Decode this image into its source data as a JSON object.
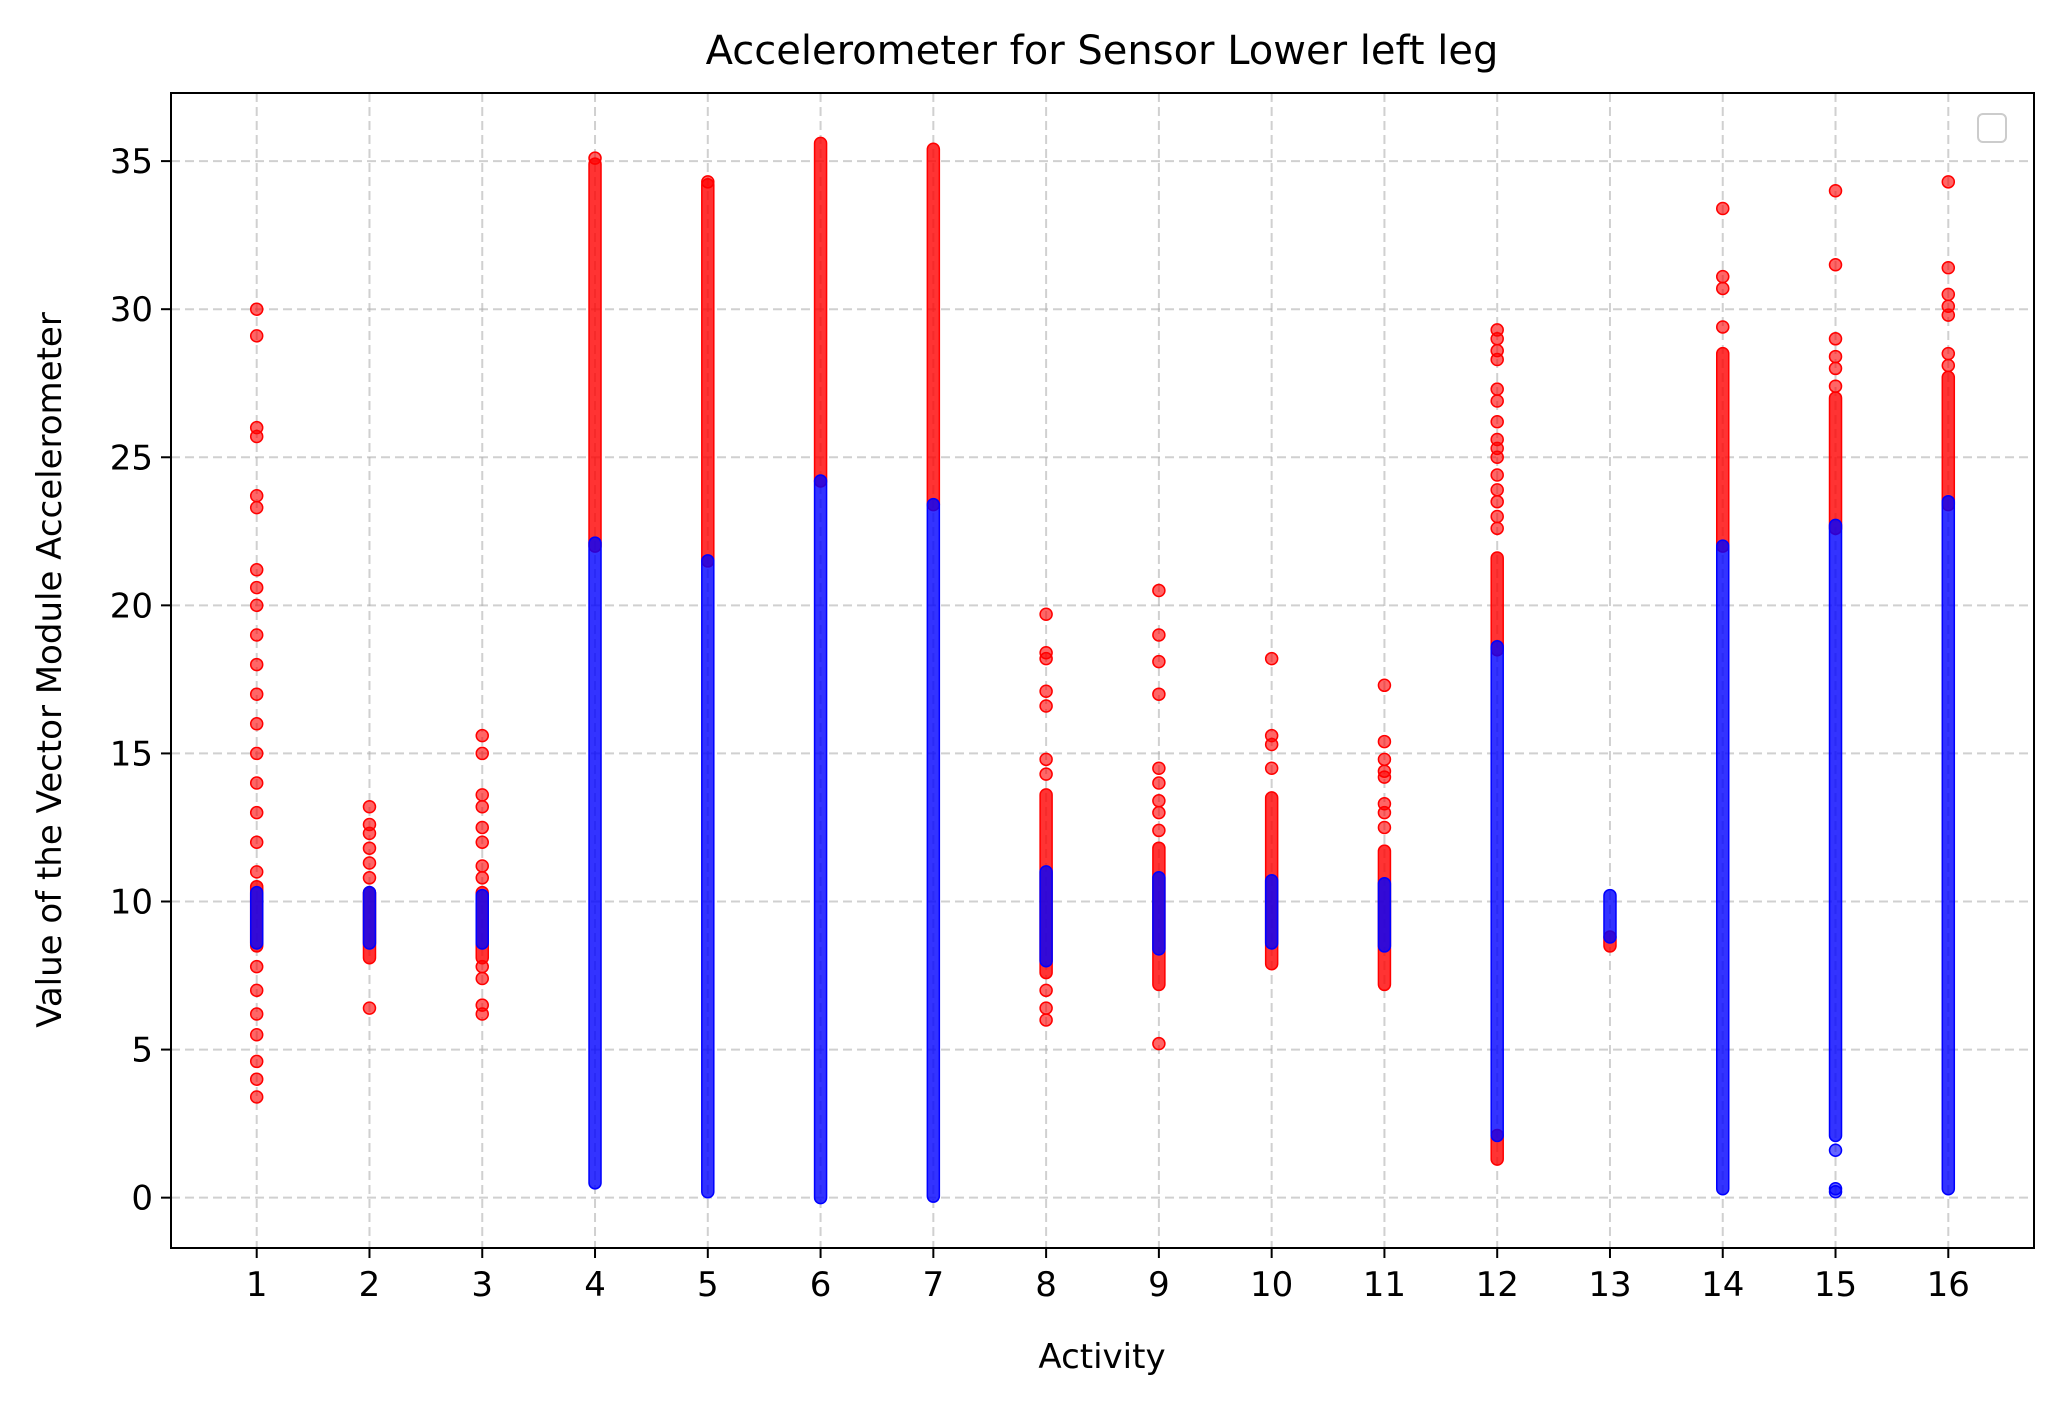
{
  "chart_data": {
    "type": "scatter",
    "title": "Accelerometer for Sensor Lower left leg",
    "xlabel": "Activity",
    "ylabel": "Value of the Vector Module Accelerometer",
    "xlim": [
      0.24,
      16.76
    ],
    "ylim": [
      -1.7,
      37.3
    ],
    "x_ticks": [
      1,
      2,
      3,
      4,
      5,
      6,
      7,
      8,
      9,
      10,
      11,
      12,
      13,
      14,
      15,
      16
    ],
    "y_ticks": [
      0,
      5,
      10,
      15,
      20,
      25,
      30,
      35
    ],
    "grid": true,
    "legend": {
      "placement": "top-right",
      "entries": []
    },
    "colors": {
      "outlier": "#ff0000",
      "inlier": "#0000ff"
    },
    "series": [
      {
        "color": "outlier",
        "ranges": [
          {
            "x": 1,
            "lo": 8.5,
            "hi": 10.5
          },
          {
            "x": 2,
            "lo": 8.1,
            "hi": 10.3
          },
          {
            "x": 3,
            "lo": 8.1,
            "hi": 10.3
          },
          {
            "x": 4,
            "lo": 22.0,
            "hi": 34.9
          },
          {
            "x": 5,
            "lo": 21.5,
            "hi": 34.2
          },
          {
            "x": 6,
            "lo": 24.2,
            "hi": 35.6
          },
          {
            "x": 7,
            "lo": 23.4,
            "hi": 35.4
          },
          {
            "x": 8,
            "lo": 7.6,
            "hi": 13.6
          },
          {
            "x": 9,
            "lo": 7.2,
            "hi": 11.8
          },
          {
            "x": 10,
            "lo": 7.9,
            "hi": 13.5
          },
          {
            "x": 11,
            "lo": 7.2,
            "hi": 11.7
          },
          {
            "x": 12,
            "lo": 18.5,
            "hi": 21.6
          },
          {
            "x": 12,
            "lo": 1.3,
            "hi": 2.1
          },
          {
            "x": 13,
            "lo": 8.5,
            "hi": 8.8
          },
          {
            "x": 14,
            "lo": 22.0,
            "hi": 28.5
          },
          {
            "x": 15,
            "lo": 22.6,
            "hi": 27.0
          },
          {
            "x": 16,
            "lo": 23.4,
            "hi": 27.7
          }
        ],
        "points": [
          {
            "x": 1,
            "y": 3.4
          },
          {
            "x": 1,
            "y": 4.0
          },
          {
            "x": 1,
            "y": 4.6
          },
          {
            "x": 1,
            "y": 5.5
          },
          {
            "x": 1,
            "y": 6.2
          },
          {
            "x": 1,
            "y": 7.0
          },
          {
            "x": 1,
            "y": 7.8
          },
          {
            "x": 1,
            "y": 11.0
          },
          {
            "x": 1,
            "y": 12.0
          },
          {
            "x": 1,
            "y": 13.0
          },
          {
            "x": 1,
            "y": 14.0
          },
          {
            "x": 1,
            "y": 15.0
          },
          {
            "x": 1,
            "y": 16.0
          },
          {
            "x": 1,
            "y": 17.0
          },
          {
            "x": 1,
            "y": 18.0
          },
          {
            "x": 1,
            "y": 19.0
          },
          {
            "x": 1,
            "y": 20.0
          },
          {
            "x": 1,
            "y": 20.6
          },
          {
            "x": 1,
            "y": 21.2
          },
          {
            "x": 1,
            "y": 23.3
          },
          {
            "x": 1,
            "y": 23.7
          },
          {
            "x": 1,
            "y": 25.7
          },
          {
            "x": 1,
            "y": 26.0
          },
          {
            "x": 1,
            "y": 29.1
          },
          {
            "x": 1,
            "y": 30.0
          },
          {
            "x": 2,
            "y": 6.4
          },
          {
            "x": 2,
            "y": 10.8
          },
          {
            "x": 2,
            "y": 11.3
          },
          {
            "x": 2,
            "y": 11.8
          },
          {
            "x": 2,
            "y": 12.3
          },
          {
            "x": 2,
            "y": 12.6
          },
          {
            "x": 2,
            "y": 13.2
          },
          {
            "x": 3,
            "y": 6.2
          },
          {
            "x": 3,
            "y": 6.5
          },
          {
            "x": 3,
            "y": 7.4
          },
          {
            "x": 3,
            "y": 7.8
          },
          {
            "x": 3,
            "y": 10.8
          },
          {
            "x": 3,
            "y": 11.2
          },
          {
            "x": 3,
            "y": 12.0
          },
          {
            "x": 3,
            "y": 12.5
          },
          {
            "x": 3,
            "y": 13.2
          },
          {
            "x": 3,
            "y": 13.6
          },
          {
            "x": 3,
            "y": 15.0
          },
          {
            "x": 3,
            "y": 15.6
          },
          {
            "x": 4,
            "y": 35.1
          },
          {
            "x": 5,
            "y": 34.3
          },
          {
            "x": 8,
            "y": 6.0
          },
          {
            "x": 8,
            "y": 6.4
          },
          {
            "x": 8,
            "y": 7.0
          },
          {
            "x": 8,
            "y": 14.3
          },
          {
            "x": 8,
            "y": 14.8
          },
          {
            "x": 8,
            "y": 16.6
          },
          {
            "x": 8,
            "y": 17.1
          },
          {
            "x": 8,
            "y": 18.2
          },
          {
            "x": 8,
            "y": 18.4
          },
          {
            "x": 8,
            "y": 19.7
          },
          {
            "x": 9,
            "y": 5.2
          },
          {
            "x": 9,
            "y": 12.4
          },
          {
            "x": 9,
            "y": 13.0
          },
          {
            "x": 9,
            "y": 13.4
          },
          {
            "x": 9,
            "y": 14.0
          },
          {
            "x": 9,
            "y": 14.5
          },
          {
            "x": 9,
            "y": 17.0
          },
          {
            "x": 9,
            "y": 18.1
          },
          {
            "x": 9,
            "y": 19.0
          },
          {
            "x": 9,
            "y": 20.5
          },
          {
            "x": 10,
            "y": 14.5
          },
          {
            "x": 10,
            "y": 15.3
          },
          {
            "x": 10,
            "y": 15.6
          },
          {
            "x": 10,
            "y": 18.2
          },
          {
            "x": 11,
            "y": 12.5
          },
          {
            "x": 11,
            "y": 13.0
          },
          {
            "x": 11,
            "y": 13.3
          },
          {
            "x": 11,
            "y": 14.2
          },
          {
            "x": 11,
            "y": 14.4
          },
          {
            "x": 11,
            "y": 14.8
          },
          {
            "x": 11,
            "y": 15.4
          },
          {
            "x": 11,
            "y": 17.3
          },
          {
            "x": 12,
            "y": 22.6
          },
          {
            "x": 12,
            "y": 23.0
          },
          {
            "x": 12,
            "y": 23.5
          },
          {
            "x": 12,
            "y": 23.9
          },
          {
            "x": 12,
            "y": 24.4
          },
          {
            "x": 12,
            "y": 25.0
          },
          {
            "x": 12,
            "y": 25.3
          },
          {
            "x": 12,
            "y": 25.6
          },
          {
            "x": 12,
            "y": 26.2
          },
          {
            "x": 12,
            "y": 26.9
          },
          {
            "x": 12,
            "y": 27.3
          },
          {
            "x": 12,
            "y": 28.3
          },
          {
            "x": 12,
            "y": 28.6
          },
          {
            "x": 12,
            "y": 29.0
          },
          {
            "x": 12,
            "y": 29.3
          },
          {
            "x": 14,
            "y": 29.4
          },
          {
            "x": 14,
            "y": 30.7
          },
          {
            "x": 14,
            "y": 31.1
          },
          {
            "x": 14,
            "y": 33.4
          },
          {
            "x": 15,
            "y": 27.4
          },
          {
            "x": 15,
            "y": 28.0
          },
          {
            "x": 15,
            "y": 28.4
          },
          {
            "x": 15,
            "y": 29.0
          },
          {
            "x": 15,
            "y": 31.5
          },
          {
            "x": 15,
            "y": 34.0
          },
          {
            "x": 16,
            "y": 28.1
          },
          {
            "x": 16,
            "y": 28.5
          },
          {
            "x": 16,
            "y": 29.8
          },
          {
            "x": 16,
            "y": 30.1
          },
          {
            "x": 16,
            "y": 30.5
          },
          {
            "x": 16,
            "y": 31.4
          },
          {
            "x": 16,
            "y": 34.3
          }
        ]
      },
      {
        "color": "inlier",
        "ranges": [
          {
            "x": 1,
            "lo": 8.6,
            "hi": 10.3
          },
          {
            "x": 2,
            "lo": 8.6,
            "hi": 10.3
          },
          {
            "x": 3,
            "lo": 8.6,
            "hi": 10.2
          },
          {
            "x": 4,
            "lo": 0.5,
            "hi": 22.1
          },
          {
            "x": 5,
            "lo": 0.2,
            "hi": 21.5
          },
          {
            "x": 6,
            "lo": 0.0,
            "hi": 24.2
          },
          {
            "x": 7,
            "lo": 0.05,
            "hi": 23.4
          },
          {
            "x": 8,
            "lo": 8.0,
            "hi": 11.0
          },
          {
            "x": 9,
            "lo": 8.4,
            "hi": 10.8
          },
          {
            "x": 10,
            "lo": 8.6,
            "hi": 10.7
          },
          {
            "x": 11,
            "lo": 8.5,
            "hi": 10.6
          },
          {
            "x": 12,
            "lo": 2.1,
            "hi": 18.6
          },
          {
            "x": 13,
            "lo": 8.8,
            "hi": 10.2
          },
          {
            "x": 14,
            "lo": 0.3,
            "hi": 22.0
          },
          {
            "x": 15,
            "lo": 2.1,
            "hi": 22.7
          },
          {
            "x": 16,
            "lo": 0.3,
            "hi": 23.5
          }
        ],
        "points": [
          {
            "x": 15,
            "y": 1.6
          },
          {
            "x": 15,
            "y": 0.3
          },
          {
            "x": 15,
            "y": 0.2
          }
        ]
      }
    ]
  }
}
